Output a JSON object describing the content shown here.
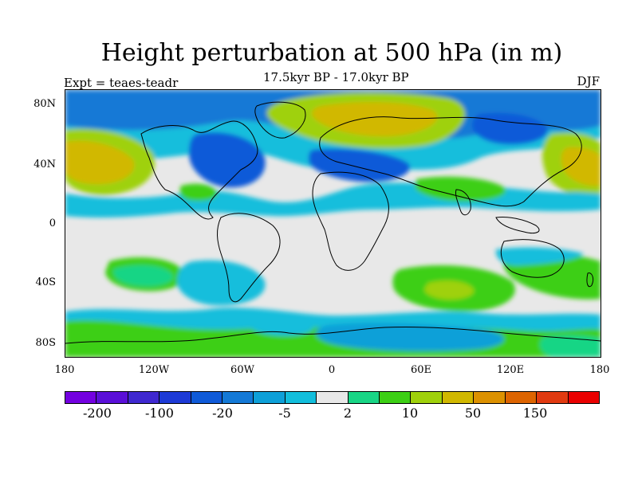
{
  "plot": {
    "title": "Height perturbation at 500 hPa (in m)",
    "subtitle": "17.5kyr BP - 17.0kyr BP",
    "left_label": "Expt = teaes-teadr",
    "right_label": "DJF"
  },
  "axes": {
    "y_ticks": [
      "80N",
      "40N",
      "0",
      "40S",
      "80S"
    ],
    "x_ticks": [
      "180",
      "120W",
      "60W",
      "0",
      "60E",
      "120E",
      "180"
    ]
  },
  "colorbar": {
    "colors": [
      "#7300e0",
      "#5a0fd8",
      "#3f28d0",
      "#1d3ad6",
      "#0f5ad8",
      "#1479d6",
      "#0ea0d8",
      "#12bedc",
      "#e8e8e8",
      "#18d585",
      "#3ccf14",
      "#9fd10b",
      "#d1b800",
      "#dc9100",
      "#dd6400",
      "#e13a10",
      "#ea0000"
    ],
    "labels": [
      "-200",
      "-100",
      "-20",
      "-5",
      "2",
      "10",
      "50",
      "150"
    ]
  },
  "map": {
    "background": "#e8e8e8",
    "coastline_color": "#000000"
  }
}
